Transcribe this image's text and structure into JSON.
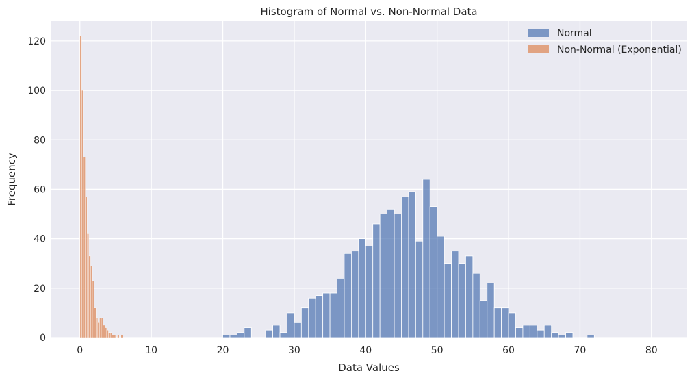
{
  "chart_data": {
    "type": "bar",
    "title": "Histogram of Normal vs. Non-Normal Data",
    "xlabel": "Data Values",
    "ylabel": "Frequency",
    "xlim": [
      -4,
      85
    ],
    "ylim": [
      0,
      128
    ],
    "xticks": [
      0,
      10,
      20,
      30,
      40,
      50,
      60,
      70,
      80
    ],
    "yticks": [
      0,
      20,
      40,
      60,
      80,
      100,
      120
    ],
    "grid": true,
    "legend_position": "top-right",
    "background_color": "#eaeaf2",
    "series": [
      {
        "name": "Normal",
        "color": "#4c72b0",
        "bin_width": 1.0,
        "bins": [
          {
            "x": 20.5,
            "y": 1
          },
          {
            "x": 21.5,
            "y": 1
          },
          {
            "x": 22.5,
            "y": 2
          },
          {
            "x": 23.5,
            "y": 4
          },
          {
            "x": 26.5,
            "y": 3
          },
          {
            "x": 27.5,
            "y": 5
          },
          {
            "x": 28.5,
            "y": 2
          },
          {
            "x": 29.5,
            "y": 10
          },
          {
            "x": 30.5,
            "y": 6
          },
          {
            "x": 31.5,
            "y": 12
          },
          {
            "x": 32.5,
            "y": 16
          },
          {
            "x": 33.5,
            "y": 17
          },
          {
            "x": 34.5,
            "y": 18
          },
          {
            "x": 35.5,
            "y": 18
          },
          {
            "x": 36.5,
            "y": 24
          },
          {
            "x": 37.5,
            "y": 34
          },
          {
            "x": 38.5,
            "y": 35
          },
          {
            "x": 39.5,
            "y": 40
          },
          {
            "x": 40.5,
            "y": 37
          },
          {
            "x": 41.5,
            "y": 46
          },
          {
            "x": 42.5,
            "y": 50
          },
          {
            "x": 43.5,
            "y": 52
          },
          {
            "x": 44.5,
            "y": 50
          },
          {
            "x": 45.5,
            "y": 57
          },
          {
            "x": 46.5,
            "y": 59
          },
          {
            "x": 47.5,
            "y": 39
          },
          {
            "x": 48.5,
            "y": 64
          },
          {
            "x": 49.5,
            "y": 53
          },
          {
            "x": 50.5,
            "y": 41
          },
          {
            "x": 51.5,
            "y": 30
          },
          {
            "x": 52.5,
            "y": 35
          },
          {
            "x": 53.5,
            "y": 30
          },
          {
            "x": 54.5,
            "y": 33
          },
          {
            "x": 55.5,
            "y": 26
          },
          {
            "x": 56.5,
            "y": 15
          },
          {
            "x": 57.5,
            "y": 22
          },
          {
            "x": 58.5,
            "y": 12
          },
          {
            "x": 59.5,
            "y": 12
          },
          {
            "x": 60.5,
            "y": 10
          },
          {
            "x": 61.5,
            "y": 4
          },
          {
            "x": 62.5,
            "y": 5
          },
          {
            "x": 63.5,
            "y": 5
          },
          {
            "x": 64.5,
            "y": 3
          },
          {
            "x": 65.5,
            "y": 5
          },
          {
            "x": 66.5,
            "y": 2
          },
          {
            "x": 67.5,
            "y": 1
          },
          {
            "x": 68.5,
            "y": 2
          },
          {
            "x": 71.5,
            "y": 1
          }
        ]
      },
      {
        "name": "Non-Normal (Exponential)",
        "color": "#dd8452",
        "bin_width": 0.25,
        "bins": [
          {
            "x": 0.125,
            "y": 122
          },
          {
            "x": 0.375,
            "y": 100
          },
          {
            "x": 0.625,
            "y": 73
          },
          {
            "x": 0.875,
            "y": 57
          },
          {
            "x": 1.125,
            "y": 42
          },
          {
            "x": 1.375,
            "y": 33
          },
          {
            "x": 1.625,
            "y": 29
          },
          {
            "x": 1.875,
            "y": 23
          },
          {
            "x": 2.125,
            "y": 12
          },
          {
            "x": 2.375,
            "y": 8
          },
          {
            "x": 2.625,
            "y": 6
          },
          {
            "x": 2.875,
            "y": 8
          },
          {
            "x": 3.125,
            "y": 8
          },
          {
            "x": 3.375,
            "y": 5
          },
          {
            "x": 3.625,
            "y": 4
          },
          {
            "x": 3.875,
            "y": 3
          },
          {
            "x": 4.125,
            "y": 2
          },
          {
            "x": 4.375,
            "y": 2
          },
          {
            "x": 4.625,
            "y": 1
          },
          {
            "x": 4.875,
            "y": 1
          },
          {
            "x": 5.375,
            "y": 1
          },
          {
            "x": 5.875,
            "y": 1
          }
        ]
      }
    ]
  }
}
